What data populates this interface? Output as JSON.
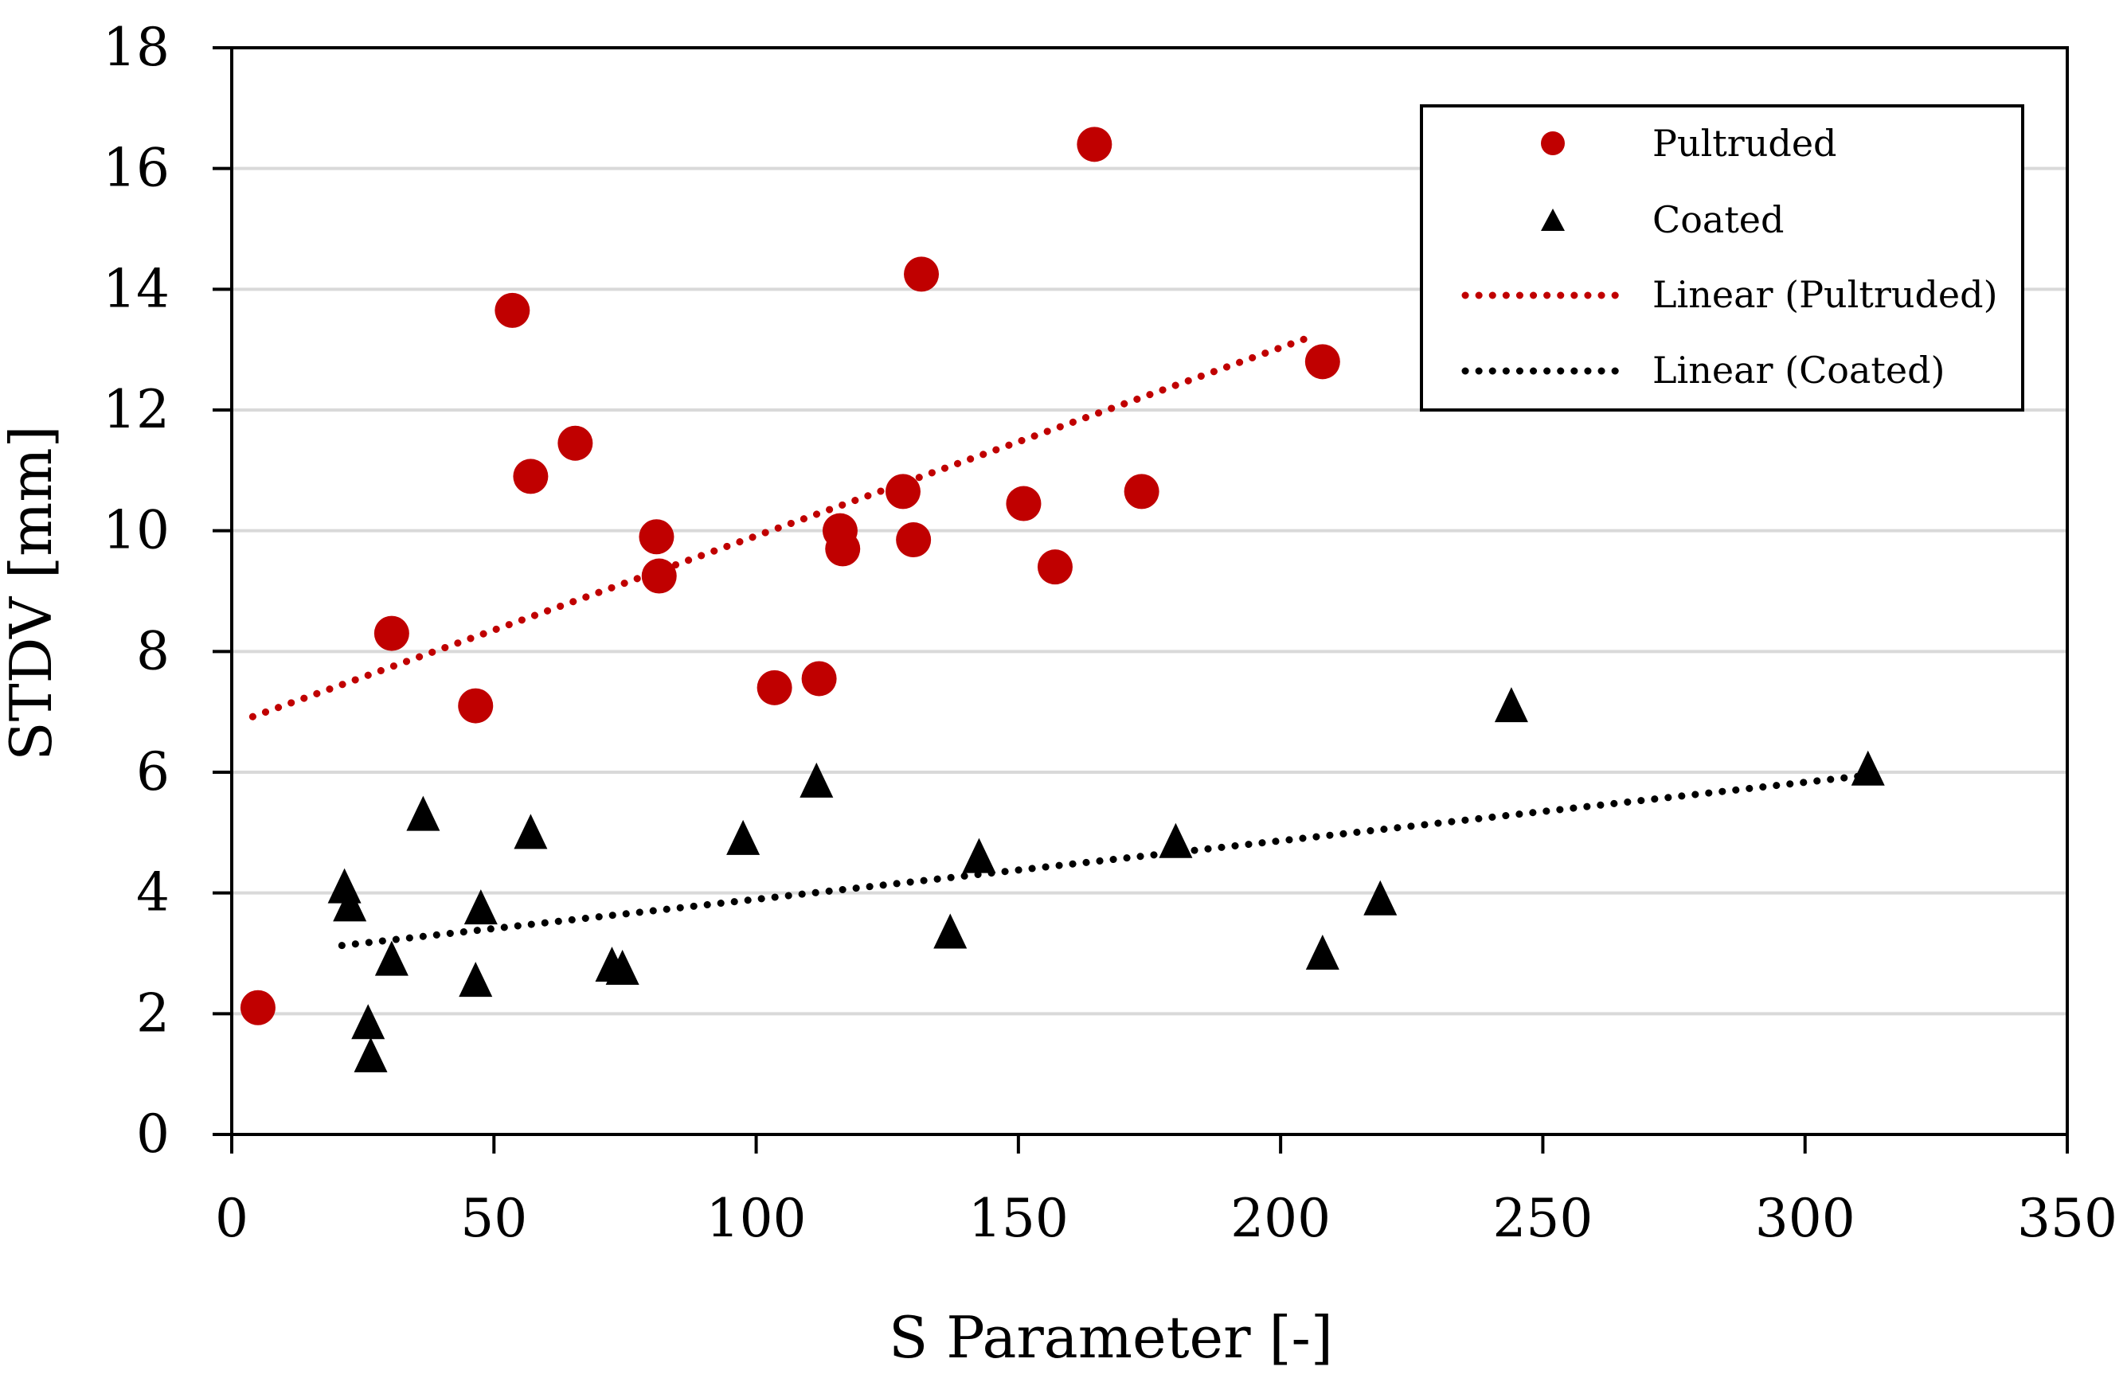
{
  "chart_data": {
    "type": "scatter",
    "title": "",
    "xlabel": "S Parameter [-]",
    "ylabel": "STDV [mm]",
    "xlim": [
      0,
      350
    ],
    "ylim": [
      0,
      18
    ],
    "xticks": [
      0,
      50,
      100,
      150,
      200,
      250,
      300,
      350
    ],
    "yticks": [
      0,
      2,
      4,
      6,
      8,
      10,
      12,
      14,
      16,
      18
    ],
    "grid": "horizontal",
    "legend_position": "top-right",
    "colors": {
      "pultruded": "#c00000",
      "coated": "#000000",
      "grid": "#d9d9d9"
    },
    "series": [
      {
        "name": "Pultruded",
        "marker": "circle",
        "color": "#c00000",
        "points": [
          [
            5,
            2.1
          ],
          [
            30.5,
            8.3
          ],
          [
            46.5,
            7.1
          ],
          [
            53.5,
            13.65
          ],
          [
            57,
            10.9
          ],
          [
            65.5,
            11.45
          ],
          [
            81,
            9.9
          ],
          [
            81.5,
            9.25
          ],
          [
            103.5,
            7.4
          ],
          [
            112,
            7.55
          ],
          [
            116,
            10.0
          ],
          [
            116.5,
            9.7
          ],
          [
            128,
            10.65
          ],
          [
            130,
            9.85
          ],
          [
            131.5,
            14.25
          ],
          [
            151,
            10.45
          ],
          [
            157,
            9.4
          ],
          [
            164.5,
            16.4
          ],
          [
            173.5,
            10.65
          ],
          [
            208,
            12.8
          ]
        ]
      },
      {
        "name": "Coated",
        "marker": "triangle",
        "color": "#000000",
        "points": [
          [
            21.5,
            4.05
          ],
          [
            22.5,
            3.75
          ],
          [
            26,
            1.8
          ],
          [
            26.5,
            1.25
          ],
          [
            30.5,
            2.85
          ],
          [
            36.5,
            5.25
          ],
          [
            46.5,
            2.5
          ],
          [
            47.5,
            3.7
          ],
          [
            57,
            4.95
          ],
          [
            72.5,
            2.75
          ],
          [
            74.5,
            2.7
          ],
          [
            97.5,
            4.85
          ],
          [
            111.5,
            5.8
          ],
          [
            137,
            3.3
          ],
          [
            142.5,
            4.55
          ],
          [
            180,
            4.8
          ],
          [
            208,
            2.95
          ],
          [
            219,
            3.85
          ],
          [
            244,
            7.05
          ],
          [
            312,
            6.0
          ]
        ]
      }
    ],
    "trendlines": [
      {
        "name": "Linear (Pultruded)",
        "color": "#c00000",
        "style": "dotted",
        "x": [
          4,
          206
        ],
        "y": [
          6.92,
          13.22
        ]
      },
      {
        "name": "Linear (Coated)",
        "color": "#000000",
        "style": "dotted",
        "x": [
          21,
          312
        ],
        "y": [
          3.13,
          5.95
        ]
      }
    ],
    "legend": [
      "Pultruded",
      "Coated",
      "Linear (Pultruded)",
      "Linear (Coated)"
    ]
  }
}
